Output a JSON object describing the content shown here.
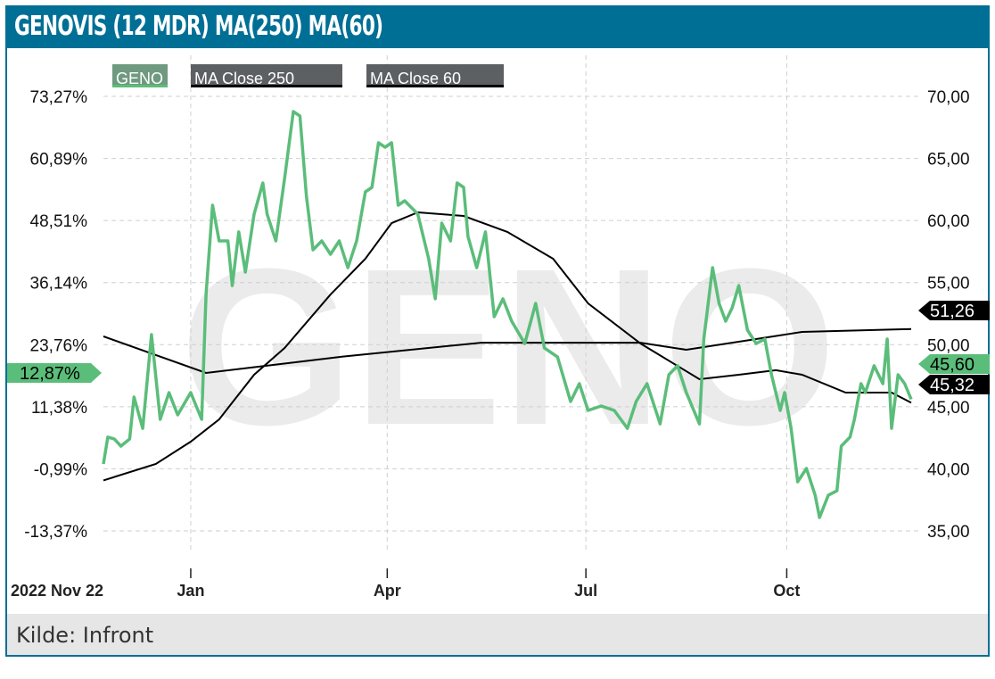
{
  "header": {
    "title": "GENOVIS (12 MDR) MA(250) MA(60)"
  },
  "footer": {
    "source": "Kilde: Infront"
  },
  "colors": {
    "header": "#006f96",
    "geno": "#5bbd7a",
    "ma": "#000000",
    "legend_geno_bg": "#6f9a80",
    "legend_ma_bg": "#5d6063"
  },
  "chart_data": {
    "type": "line",
    "watermark": "GENO",
    "legend": [
      {
        "label": "GENO",
        "series": "geno"
      },
      {
        "label": "MA  Close  250",
        "series": "ma250"
      },
      {
        "label": "MA  Close  60",
        "series": "ma60"
      }
    ],
    "x_ticks": [
      {
        "label": "2022 Nov 22",
        "day": 0,
        "bold": true
      },
      {
        "label": "Jan",
        "day": 40
      },
      {
        "label": "Apr",
        "day": 130
      },
      {
        "label": "Jul",
        "day": 221
      },
      {
        "label": "Oct",
        "day": 313
      }
    ],
    "y_right": {
      "ticks": [
        "70,00",
        "65,00",
        "60,00",
        "55,00",
        "50,00",
        "45,00",
        "40,00",
        "35,00"
      ],
      "values": [
        70,
        65,
        60,
        55,
        50,
        45,
        40,
        35
      ],
      "range": [
        35,
        70
      ]
    },
    "y_left": {
      "ticks": [
        "73,27%",
        "60,89%",
        "48,51%",
        "36,14%",
        "23,76%",
        "11,38%",
        "-0,99%",
        "-13,37%"
      ]
    },
    "x_range_days": [
      0,
      370
    ],
    "last_labels": {
      "geno_pct": "12,87%",
      "geno": "45,60",
      "ma250": "51,26",
      "ma60": "45,32"
    },
    "series": {
      "geno": [
        [
          0,
          40.39
        ],
        [
          2,
          42.55
        ],
        [
          5,
          42.4
        ],
        [
          8,
          41.83
        ],
        [
          12,
          42.4
        ],
        [
          14,
          45.78
        ],
        [
          18,
          43.26
        ],
        [
          22,
          50.81
        ],
        [
          26,
          43.98
        ],
        [
          30,
          46.14
        ],
        [
          34,
          44.34
        ],
        [
          40,
          46.14
        ],
        [
          45,
          43.98
        ],
        [
          47,
          54.04
        ],
        [
          50,
          61.23
        ],
        [
          53,
          58.36
        ],
        [
          57,
          58.36
        ],
        [
          59,
          54.76
        ],
        [
          62,
          59.08
        ],
        [
          65,
          55.84
        ],
        [
          69,
          60.51
        ],
        [
          73,
          63.03
        ],
        [
          75,
          60.51
        ],
        [
          79,
          58.36
        ],
        [
          83,
          63.39
        ],
        [
          87,
          68.78
        ],
        [
          90,
          68.42
        ],
        [
          93,
          61.95
        ],
        [
          96,
          57.64
        ],
        [
          100,
          58.36
        ],
        [
          104,
          57.28
        ],
        [
          108,
          58.36
        ],
        [
          112,
          56.2
        ],
        [
          116,
          58.36
        ],
        [
          120,
          62.31
        ],
        [
          123,
          62.67
        ],
        [
          126,
          66.26
        ],
        [
          129,
          65.9
        ],
        [
          132,
          66.26
        ],
        [
          135,
          61.23
        ],
        [
          138,
          61.59
        ],
        [
          144,
          60.51
        ],
        [
          149,
          56.92
        ],
        [
          152,
          53.69
        ],
        [
          155,
          59.79
        ],
        [
          159,
          58.36
        ],
        [
          162,
          63.03
        ],
        [
          165,
          62.67
        ],
        [
          167,
          58.72
        ],
        [
          171,
          56.2
        ],
        [
          175,
          59.08
        ],
        [
          179,
          52.25
        ],
        [
          183,
          53.69
        ],
        [
          187,
          51.89
        ],
        [
          193,
          50.09
        ],
        [
          198,
          53.33
        ],
        [
          202,
          49.73
        ],
        [
          208,
          49.01
        ],
        [
          214,
          45.42
        ],
        [
          218,
          46.86
        ],
        [
          222,
          44.7
        ],
        [
          228,
          45.06
        ],
        [
          234,
          44.7
        ],
        [
          240,
          43.26
        ],
        [
          244,
          45.42
        ],
        [
          249,
          46.86
        ],
        [
          255,
          43.62
        ],
        [
          259,
          47.58
        ],
        [
          263,
          48.3
        ],
        [
          267,
          46.14
        ],
        [
          273,
          43.62
        ],
        [
          275,
          50.45
        ],
        [
          279,
          56.2
        ],
        [
          282,
          53.33
        ],
        [
          285,
          51.89
        ],
        [
          288,
          52.97
        ],
        [
          291,
          54.76
        ],
        [
          295,
          51.17
        ],
        [
          299,
          50.09
        ],
        [
          303,
          50.45
        ],
        [
          306,
          47.58
        ],
        [
          310,
          44.7
        ],
        [
          312,
          46.14
        ],
        [
          315,
          43.26
        ],
        [
          318,
          38.95
        ],
        [
          322,
          40.03
        ],
        [
          326,
          37.87
        ],
        [
          328,
          36.08
        ],
        [
          332,
          37.87
        ],
        [
          336,
          38.23
        ],
        [
          338,
          41.83
        ],
        [
          342,
          42.55
        ],
        [
          344,
          43.98
        ],
        [
          347,
          46.86
        ],
        [
          349,
          46.14
        ],
        [
          353,
          48.3
        ],
        [
          357,
          46.86
        ],
        [
          359,
          50.45
        ],
        [
          361,
          43.26
        ],
        [
          364,
          47.58
        ],
        [
          367,
          46.86
        ],
        [
          370,
          45.6
        ]
      ],
      "ma250": [
        [
          0,
          50.67
        ],
        [
          47,
          47.72
        ],
        [
          108,
          49.01
        ],
        [
          173,
          50.16
        ],
        [
          246,
          50.16
        ],
        [
          267,
          49.59
        ],
        [
          299,
          50.45
        ],
        [
          320,
          51.03
        ],
        [
          370,
          51.26
        ]
      ],
      "ma60": [
        [
          0,
          39.07
        ],
        [
          24,
          40.39
        ],
        [
          40,
          42.19
        ],
        [
          53,
          43.98
        ],
        [
          69,
          47.58
        ],
        [
          83,
          49.73
        ],
        [
          104,
          54.04
        ],
        [
          120,
          56.92
        ],
        [
          132,
          59.79
        ],
        [
          144,
          60.66
        ],
        [
          165,
          60.37
        ],
        [
          185,
          59.08
        ],
        [
          206,
          56.92
        ],
        [
          222,
          53.33
        ],
        [
          246,
          50.09
        ],
        [
          273,
          47.22
        ],
        [
          291,
          47.58
        ],
        [
          308,
          47.94
        ],
        [
          320,
          47.58
        ],
        [
          340,
          46.14
        ],
        [
          361,
          46.14
        ],
        [
          370,
          45.32
        ]
      ]
    }
  }
}
